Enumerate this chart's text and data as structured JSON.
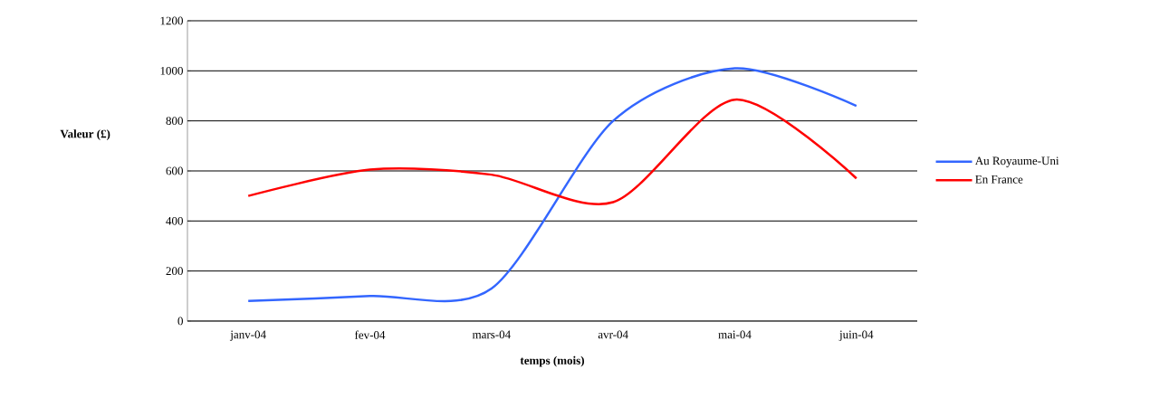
{
  "chart_data": {
    "type": "line",
    "xlabel": "temps (mois)",
    "ylabel": "Valeur (£)",
    "categories": [
      "janv-04",
      "fev-04",
      "mars-04",
      "avr-04",
      "mai-04",
      "juin-04"
    ],
    "series": [
      {
        "name": "Au Royaume-Uni",
        "color": "#3366ff",
        "values": [
          80,
          100,
          130,
          800,
          1010,
          860
        ]
      },
      {
        "name": "En France",
        "color": "#ff0000",
        "values": [
          500,
          605,
          585,
          475,
          885,
          570
        ]
      }
    ],
    "ylim": [
      0,
      1200
    ],
    "yticks": [
      0,
      200,
      400,
      600,
      800,
      1000,
      1200
    ],
    "grid": "y",
    "legend": "right",
    "line_style": "solid",
    "marker": "none"
  }
}
